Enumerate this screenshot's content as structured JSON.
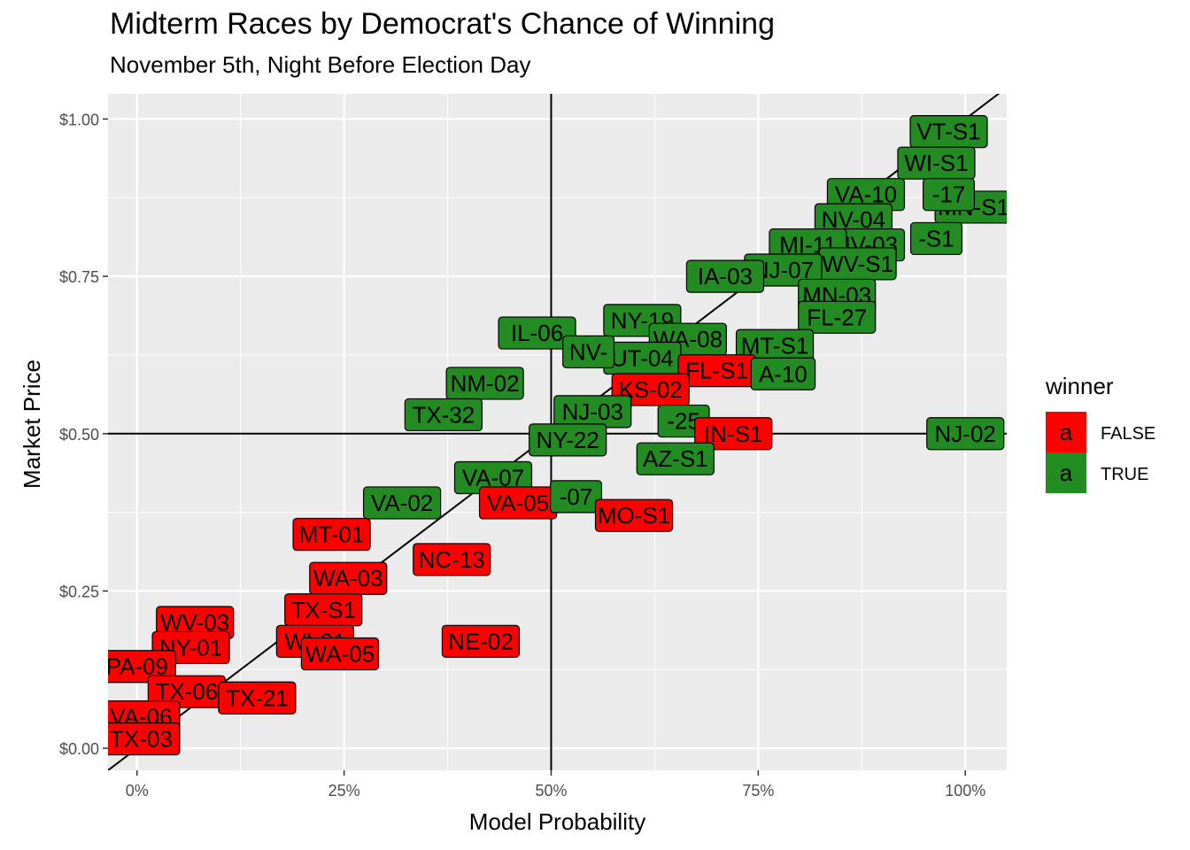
{
  "title": "Midterm Races by Democrat's Chance of Winning",
  "subtitle": "November 5th, Night Before Election Day",
  "chart_data": {
    "type": "scatter",
    "geom": "label",
    "xlabel": "Model Probability",
    "ylabel": "Market Price",
    "xlim": [
      -0.035,
      1.05
    ],
    "ylim": [
      -0.035,
      1.04
    ],
    "x_ticks": [
      0,
      0.25,
      0.5,
      0.75,
      1.0
    ],
    "x_tick_labels": [
      "0%",
      "25%",
      "50%",
      "75%",
      "100%"
    ],
    "y_ticks": [
      0,
      0.25,
      0.5,
      0.75,
      1.0
    ],
    "y_tick_labels": [
      "$0.00",
      "$0.25",
      "$0.50",
      "$0.75",
      "$1.00"
    ],
    "reference_lines": {
      "vertical_x": 0.5,
      "horizontal_y": 0.5,
      "diagonal": "y = x"
    },
    "grid": true,
    "panel_background": "#ebebeb",
    "legend": {
      "title": "winner",
      "position": "right",
      "key_glyph": "a",
      "entries": [
        {
          "label": "FALSE",
          "color": "#ff0000"
        },
        {
          "label": "TRUE",
          "color": "#228b22"
        }
      ]
    },
    "points": [
      {
        "label": "VT-S1",
        "x": 0.98,
        "y": 0.98,
        "winner": true
      },
      {
        "label": "WI-S1",
        "x": 0.965,
        "y": 0.93,
        "winner": true
      },
      {
        "label": "VA-10",
        "x": 0.88,
        "y": 0.88,
        "winner": true
      },
      {
        "label": "NV-04",
        "x": 0.865,
        "y": 0.84,
        "winner": true
      },
      {
        "label": "MN-S1",
        "x": 1.01,
        "y": 0.86,
        "winner": true
      },
      {
        "label": "-17",
        "x": 0.98,
        "y": 0.88,
        "winner": true
      },
      {
        "label": "-S1",
        "x": 0.965,
        "y": 0.81,
        "winner": true
      },
      {
        "label": "NV-03",
        "x": 0.88,
        "y": 0.8,
        "winner": true
      },
      {
        "label": "MI-11",
        "x": 0.81,
        "y": 0.8,
        "winner": true
      },
      {
        "label": "WV-S1",
        "x": 0.87,
        "y": 0.77,
        "winner": true
      },
      {
        "label": "NJ-07",
        "x": 0.78,
        "y": 0.76,
        "winner": true
      },
      {
        "label": "IA-03",
        "x": 0.71,
        "y": 0.75,
        "winner": true
      },
      {
        "label": "MN-03",
        "x": 0.845,
        "y": 0.72,
        "winner": true
      },
      {
        "label": "FL-27",
        "x": 0.845,
        "y": 0.685,
        "winner": true
      },
      {
        "label": "NY-19",
        "x": 0.61,
        "y": 0.68,
        "winner": true
      },
      {
        "label": "WA-08",
        "x": 0.665,
        "y": 0.65,
        "winner": true
      },
      {
        "label": "MT-S1",
        "x": 0.77,
        "y": 0.64,
        "winner": true
      },
      {
        "label": "IL-06",
        "x": 0.483,
        "y": 0.66,
        "winner": true
      },
      {
        "label": "UT-04",
        "x": 0.61,
        "y": 0.62,
        "winner": true
      },
      {
        "label": "FL-S1",
        "x": 0.7,
        "y": 0.6,
        "winner": false
      },
      {
        "label": "A-10",
        "x": 0.78,
        "y": 0.595,
        "winner": true
      },
      {
        "label": "NV-",
        "x": 0.545,
        "y": 0.63,
        "winner": true
      },
      {
        "label": "NM-02",
        "x": 0.42,
        "y": 0.58,
        "winner": true
      },
      {
        "label": "KS-02",
        "x": 0.62,
        "y": 0.57,
        "winner": false
      },
      {
        "label": "NJ-03",
        "x": 0.55,
        "y": 0.535,
        "winner": true
      },
      {
        "label": "TX-32",
        "x": 0.37,
        "y": 0.53,
        "winner": true
      },
      {
        "label": "-25",
        "x": 0.66,
        "y": 0.52,
        "winner": true
      },
      {
        "label": "IN-S1",
        "x": 0.72,
        "y": 0.5,
        "winner": false
      },
      {
        "label": "NJ-02",
        "x": 1.0,
        "y": 0.5,
        "winner": true
      },
      {
        "label": "NY-22",
        "x": 0.52,
        "y": 0.49,
        "winner": true
      },
      {
        "label": "AZ-S1",
        "x": 0.65,
        "y": 0.46,
        "winner": true
      },
      {
        "label": "VA-07",
        "x": 0.43,
        "y": 0.43,
        "winner": true
      },
      {
        "label": "VA-05",
        "x": 0.46,
        "y": 0.39,
        "winner": false
      },
      {
        "label": "-07",
        "x": 0.53,
        "y": 0.4,
        "winner": true
      },
      {
        "label": "MO-S1",
        "x": 0.6,
        "y": 0.37,
        "winner": false
      },
      {
        "label": "VA-02",
        "x": 0.32,
        "y": 0.39,
        "winner": true
      },
      {
        "label": "MT-01",
        "x": 0.235,
        "y": 0.34,
        "winner": false
      },
      {
        "label": "NC-13",
        "x": 0.38,
        "y": 0.3,
        "winner": false
      },
      {
        "label": "WA-03",
        "x": 0.255,
        "y": 0.27,
        "winner": false
      },
      {
        "label": "TX-S1",
        "x": 0.225,
        "y": 0.22,
        "winner": false
      },
      {
        "label": "WV-03",
        "x": 0.07,
        "y": 0.2,
        "winner": false
      },
      {
        "label": "WI-01",
        "x": 0.215,
        "y": 0.17,
        "winner": false
      },
      {
        "label": "NE-02",
        "x": 0.415,
        "y": 0.17,
        "winner": false
      },
      {
        "label": "NY-01",
        "x": 0.065,
        "y": 0.16,
        "winner": false
      },
      {
        "label": "WA-05",
        "x": 0.245,
        "y": 0.15,
        "winner": false
      },
      {
        "label": "PA-09",
        "x": 0.0,
        "y": 0.13,
        "winner": false
      },
      {
        "label": "TX-06",
        "x": 0.06,
        "y": 0.09,
        "winner": false
      },
      {
        "label": "TX-21",
        "x": 0.145,
        "y": 0.08,
        "winner": false
      },
      {
        "label": "VA-06",
        "x": 0.005,
        "y": 0.05,
        "winner": false
      },
      {
        "label": "TX-03",
        "x": 0.005,
        "y": 0.015,
        "winner": false
      }
    ]
  }
}
